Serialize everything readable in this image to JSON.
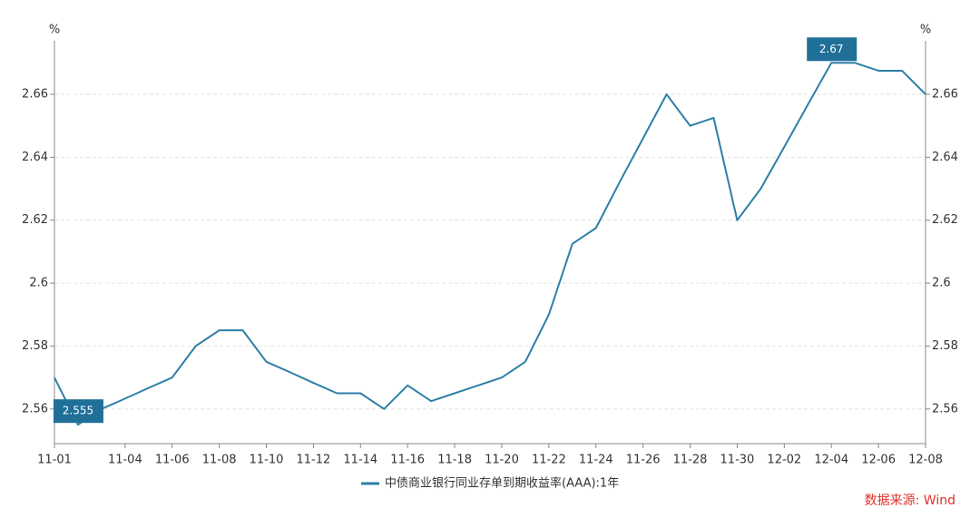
{
  "chart_data": {
    "type": "line",
    "x": [
      "11-01",
      "11-02",
      "11-03",
      "11-04",
      "11-05",
      "11-06",
      "11-07",
      "11-08",
      "11-09",
      "11-10",
      "11-11",
      "11-12",
      "11-13",
      "11-14",
      "11-15",
      "11-16",
      "11-17",
      "11-18",
      "11-19",
      "11-20",
      "11-21",
      "11-22",
      "11-23",
      "11-24",
      "11-25",
      "11-26",
      "11-27",
      "11-28",
      "11-29",
      "11-30",
      "12-01",
      "12-02",
      "12-03",
      "12-04",
      "12-05",
      "12-06",
      "12-07",
      "12-08"
    ],
    "xticks": [
      "11-01",
      "11-04",
      "11-06",
      "11-08",
      "11-10",
      "11-12",
      "11-14",
      "11-16",
      "11-18",
      "11-20",
      "11-22",
      "11-24",
      "11-26",
      "11-28",
      "11-30",
      "12-02",
      "12-04",
      "12-06",
      "12-08"
    ],
    "series": [
      {
        "name": "中债商业银行同业存单到期收益率(AAA):1年",
        "color": "#2e7fa8",
        "values": [
          2.57,
          2.555,
          2.56,
          2.5633,
          2.5667,
          2.57,
          2.58,
          2.585,
          2.585,
          2.575,
          2.5717,
          2.5683,
          2.565,
          2.565,
          2.56,
          2.5675,
          2.5625,
          2.565,
          2.5675,
          2.57,
          2.575,
          2.59,
          2.6125,
          2.6175,
          2.632,
          2.646,
          2.66,
          2.65,
          2.6525,
          2.62,
          2.63,
          2.6433,
          2.6567,
          2.67,
          2.67,
          2.6675,
          2.6675,
          2.66
        ]
      }
    ],
    "ylim": [
      2.549,
      2.677
    ],
    "yticks": [
      2.56,
      2.58,
      2.6,
      2.62,
      2.64,
      2.66
    ],
    "y2lim": [
      2.549,
      2.677
    ],
    "y2ticks": [
      2.56,
      2.58,
      2.6,
      2.62,
      2.64,
      2.66
    ],
    "y_unit": "%",
    "y2_unit": "%",
    "extreme_labels": true,
    "label_color": "#1f6f98",
    "grid": true,
    "source": "数据来源: Wind"
  }
}
